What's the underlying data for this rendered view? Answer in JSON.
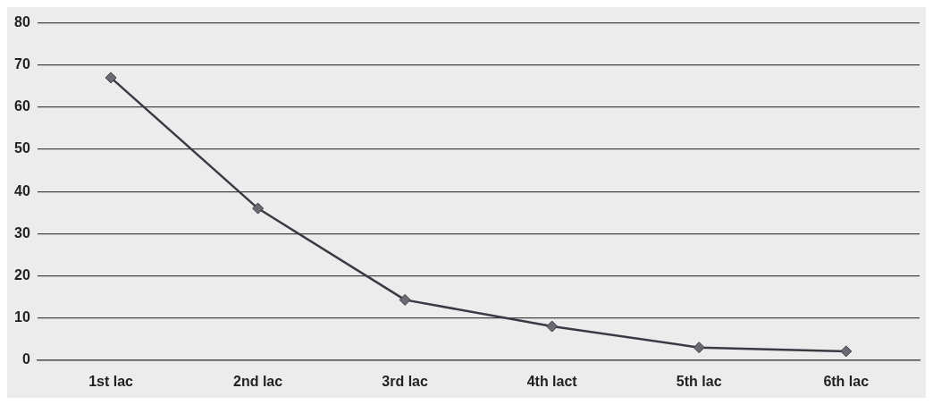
{
  "chart_data": {
    "type": "line",
    "categories": [
      "1st lac",
      "2nd lac",
      "3rd lac",
      "4th lact",
      "5th lac",
      "6th lac"
    ],
    "series": [
      {
        "color": "#3a3a44",
        "values": [
          67,
          36,
          14.3,
          8,
          3,
          2.1
        ]
      }
    ],
    "ylim": [
      0,
      80
    ],
    "yticks": [
      0,
      10,
      20,
      30,
      40,
      50,
      60,
      70,
      80
    ],
    "grid": "y",
    "legend": false,
    "marker": "diamond",
    "line_style": "solid"
  }
}
